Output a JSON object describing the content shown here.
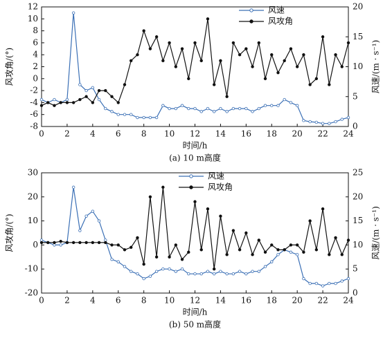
{
  "chart_data": [
    {
      "type": "line",
      "caption": "(a) 10 m高度",
      "xlabel": "时间/h",
      "ylabel": "风攻角/(°)",
      "y2label": "风速/(m · s⁻¹)",
      "legend": "upper right",
      "x": [
        0,
        0.5,
        1,
        1.5,
        2,
        2.5,
        3,
        3.5,
        4,
        4.5,
        5,
        5.5,
        6,
        6.5,
        7,
        7.5,
        8,
        8.5,
        9,
        9.5,
        10,
        10.5,
        11,
        11.5,
        12,
        12.5,
        13,
        13.5,
        14,
        14.5,
        15,
        15.5,
        16,
        16.5,
        17,
        17.5,
        18,
        18.5,
        19,
        19.5,
        20,
        20.5,
        21,
        21.5,
        22,
        22.5,
        23,
        23.5,
        24
      ],
      "series": [
        {
          "name": "风速",
          "color": "#3a6fb5",
          "axis": "y2",
          "marker": "open",
          "values": [
            4.5,
            4,
            4.5,
            4,
            4.5,
            19,
            7,
            6,
            6.5,
            4.5,
            3,
            2.5,
            2,
            2,
            2,
            1.5,
            1.5,
            1.5,
            1.5,
            3.5,
            3,
            3,
            3.5,
            3,
            3,
            2.5,
            3,
            2.5,
            3,
            2.5,
            3,
            3,
            3,
            2.5,
            3,
            3.5,
            3.5,
            3.5,
            4.5,
            4,
            3.5,
            1,
            0.8,
            0.7,
            0.5,
            0.5,
            0.8,
            1.2,
            1.5
          ]
        },
        {
          "name": "风攻角",
          "color": "#111111",
          "marker": "filled",
          "values": [
            -4.5,
            -4,
            -4.5,
            -4,
            -4,
            -4,
            -3.5,
            -3,
            -4,
            -2,
            -2,
            -3,
            -4,
            -1,
            3,
            4,
            8,
            5,
            7,
            3,
            6,
            2,
            5,
            0,
            6,
            3,
            10,
            -1,
            3,
            -3,
            6,
            4,
            5,
            2,
            6,
            0,
            4,
            1,
            3,
            5,
            2,
            4,
            -1,
            0,
            7,
            -1,
            4,
            2,
            6
          ]
        }
      ],
      "xlim": [
        0,
        24
      ],
      "xticks": [
        0,
        2,
        4,
        6,
        8,
        10,
        12,
        14,
        16,
        18,
        20,
        22,
        24
      ],
      "ylim": [
        -8,
        12
      ],
      "yticks": [
        -8,
        -6,
        -4,
        -2,
        0,
        2,
        4,
        6,
        8,
        10,
        12
      ],
      "y2lim": [
        0,
        20
      ],
      "y2ticks": [
        0,
        5,
        10,
        15,
        20
      ]
    },
    {
      "type": "line",
      "caption": "(b) 50 m高度",
      "xlabel": "时间/h",
      "ylabel": "风攻角/(°)",
      "y2label": "风速/(m · s⁻¹)",
      "legend": "upper center",
      "x": [
        0,
        0.5,
        1,
        1.5,
        2,
        2.5,
        3,
        3.5,
        4,
        4.5,
        5,
        5.5,
        6,
        6.5,
        7,
        7.5,
        8,
        8.5,
        9,
        9.5,
        10,
        10.5,
        11,
        11.5,
        12,
        12.5,
        13,
        13.5,
        14,
        14.5,
        15,
        15.5,
        16,
        16.5,
        17,
        17.5,
        18,
        18.5,
        19,
        19.5,
        20,
        20.5,
        21,
        21.5,
        22,
        22.5,
        23,
        23.5,
        24
      ],
      "series": [
        {
          "name": "风速",
          "color": "#3a6fb5",
          "axis": "y2",
          "marker": "open",
          "values": [
            11,
            10.5,
            10,
            10,
            10.5,
            22,
            13,
            16,
            17,
            15,
            11,
            7,
            6.5,
            5.5,
            4.5,
            4,
            3,
            3.5,
            4.5,
            5,
            5,
            4.5,
            5,
            4,
            4,
            4,
            4.5,
            4,
            4.5,
            4,
            4,
            4.5,
            4,
            4.5,
            4.5,
            5.5,
            6.5,
            8,
            9,
            8.5,
            8,
            3,
            2,
            2,
            1.5,
            2,
            2,
            2.5,
            3
          ]
        },
        {
          "name": "风攻角",
          "color": "#111111",
          "marker": "filled",
          "values": [
            1,
            1,
            1,
            1.5,
            1,
            1,
            1,
            1,
            1,
            1,
            1,
            0,
            0,
            -2,
            -1,
            3,
            -8,
            20,
            -5,
            24,
            -5,
            0,
            -6,
            -3,
            18,
            -2,
            15,
            -10,
            12,
            -4,
            6,
            -2,
            5,
            -4,
            2,
            -3,
            0,
            -2,
            -2,
            0,
            0,
            -3,
            10,
            -2,
            15,
            -4,
            3,
            -4,
            2
          ]
        }
      ],
      "xlim": [
        0,
        24
      ],
      "xticks": [
        0,
        2,
        4,
        6,
        8,
        10,
        12,
        14,
        16,
        18,
        20,
        22,
        24
      ],
      "ylim": [
        -20,
        30
      ],
      "yticks": [
        -20,
        -10,
        0,
        10,
        20,
        30
      ],
      "y2lim": [
        0,
        25
      ],
      "y2ticks": [
        0,
        5,
        10,
        15,
        20,
        25
      ]
    }
  ]
}
